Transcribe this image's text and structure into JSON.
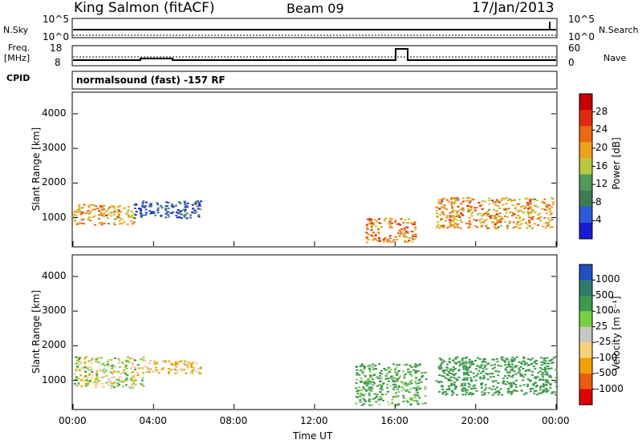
{
  "header": {
    "station": "King Salmon (fitACF)",
    "beam": "Beam 09",
    "date": "17/Jan/2013"
  },
  "side_labels": {
    "nsky": "N.Sky",
    "nsearch": "N.Search",
    "freq_top": "Freq.",
    "freq_unit": "[MHz]",
    "nave": "Nave",
    "cpid": "CPID"
  },
  "noise_axis": {
    "left": [
      "10^5",
      "10^0"
    ],
    "right": [
      "10^5",
      "10^0"
    ]
  },
  "freq_axis": {
    "left": [
      "18",
      "8"
    ],
    "right": [
      "60",
      "0"
    ]
  },
  "cpid_text": "normalsound (fast) -157 RF",
  "colors": {
    "power_scale": [
      "#1a1ad6",
      "#2a5bd8",
      "#3e7b55",
      "#4f9a58",
      "#b7c93c",
      "#f0a019",
      "#e86a12",
      "#e02a0c",
      "#c60000"
    ],
    "velocity_scale": [
      "#e00000",
      "#ea5a10",
      "#f0a000",
      "#f8d078",
      "#c8c8c0",
      "#78d040",
      "#3c9a4a",
      "#2e7a6c",
      "#1f4fc0"
    ]
  },
  "chart_data": [
    {
      "type": "heatmap",
      "title": "Power",
      "ylabel": "Slant Range [km]",
      "yticks": [
        "1000",
        "2000",
        "3000",
        "4000"
      ],
      "ylim": [
        180,
        4600
      ],
      "xlim": [
        "00:00",
        "24:00"
      ],
      "colorbar_label": "Power [dB]",
      "colorbar_ticks": [
        "4",
        "8",
        "12",
        "16",
        "20",
        "24",
        "28"
      ],
      "echo_regions": [
        {
          "t": [
            0.0,
            3.0
          ],
          "range": [
            800,
            1400
          ],
          "value_db": 22
        },
        {
          "t": [
            3.0,
            6.3
          ],
          "range": [
            1000,
            1500
          ],
          "value_db": 8
        },
        {
          "t": [
            14.5,
            17.0
          ],
          "range": [
            300,
            1000
          ],
          "value_db": 24
        },
        {
          "t": [
            18.0,
            23.8
          ],
          "range": [
            700,
            1600
          ],
          "value_db": 22
        }
      ]
    },
    {
      "type": "heatmap",
      "title": "Velocity",
      "ylabel": "Slant Range [km]",
      "yticks": [
        "1000",
        "2000",
        "3000",
        "4000"
      ],
      "ylim": [
        180,
        4600
      ],
      "xlim": [
        "00:00",
        "24:00"
      ],
      "xticks": [
        "00:00",
        "04:00",
        "08:00",
        "12:00",
        "16:00",
        "20:00",
        "00:00"
      ],
      "xlabel": "Time UT",
      "colorbar_label": "Velocity [m s⁻¹]",
      "colorbar_ticks": [
        "1000",
        "500",
        "100",
        "25",
        "-25",
        "-100",
        "-500",
        "-1000"
      ],
      "echo_regions": [
        {
          "t": [
            0.0,
            3.5
          ],
          "range": [
            800,
            1700
          ],
          "value_ms": 0
        },
        {
          "t": [
            3.5,
            6.3
          ],
          "range": [
            1200,
            1600
          ],
          "value_ms": -100
        },
        {
          "t": [
            14.0,
            17.5
          ],
          "range": [
            300,
            1500
          ],
          "value_ms": 150
        },
        {
          "t": [
            18.0,
            24.0
          ],
          "range": [
            600,
            1700
          ],
          "value_ms": 250
        }
      ]
    }
  ]
}
